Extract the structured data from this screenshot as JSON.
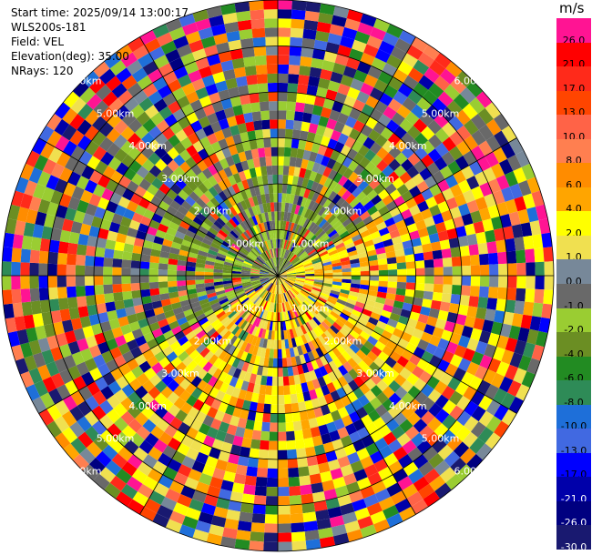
{
  "header": {
    "start_time": "Start time: 2025/09/14 13:00:17",
    "instrument": "WLS200s-181",
    "field": "Field: VEL",
    "elevation": "Elevation(deg): 35.00",
    "nrays": "NRays: 120"
  },
  "colorbar": {
    "unit": "m/s",
    "bins": [
      {
        "label": "26.0",
        "color": "#ff1493",
        "text": "#000000"
      },
      {
        "label": "21.0",
        "color": "#ff0000",
        "text": "#000000"
      },
      {
        "label": "17.0",
        "color": "#ff2a1a",
        "text": "#000000"
      },
      {
        "label": "13.0",
        "color": "#ff4500",
        "text": "#000000"
      },
      {
        "label": "10.0",
        "color": "#ff6347",
        "text": "#000000"
      },
      {
        "label": "8.0",
        "color": "#ff7f50",
        "text": "#000000"
      },
      {
        "label": "6.0",
        "color": "#ff8c00",
        "text": "#000000"
      },
      {
        "label": "4.0",
        "color": "#ffa500",
        "text": "#000000"
      },
      {
        "label": "2.0",
        "color": "#ffff00",
        "text": "#000000"
      },
      {
        "label": "1.0",
        "color": "#f0e050",
        "text": "#000000"
      },
      {
        "label": "0.0",
        "color": "#778899",
        "text": "#000000"
      },
      {
        "label": "-1.0",
        "color": "#696969",
        "text": "#000000"
      },
      {
        "label": "-2.0",
        "color": "#9acd32",
        "text": "#000000"
      },
      {
        "label": "-4.0",
        "color": "#6b8e23",
        "text": "#000000"
      },
      {
        "label": "-6.0",
        "color": "#228b22",
        "text": "#000000"
      },
      {
        "label": "-8.0",
        "color": "#2e8b57",
        "text": "#000000"
      },
      {
        "label": "-10.0",
        "color": "#1e6fd9",
        "text": "#000000"
      },
      {
        "label": "-13.0",
        "color": "#4169e1",
        "text": "#000000"
      },
      {
        "label": "-17.0",
        "color": "#0000ff",
        "text": "#000000"
      },
      {
        "label": "-21.0",
        "color": "#0000aa",
        "text": "#ffffff"
      },
      {
        "label": "-26.0",
        "color": "#000080",
        "text": "#ffffff"
      },
      {
        "label": "-30.0",
        "color": "#191970",
        "text": "#ffffff"
      }
    ]
  },
  "chart_data": {
    "type": "heatmap",
    "projection": "polar PPI",
    "field": "VEL",
    "n_rays": 120,
    "range_rings_km": [
      1.0,
      2.0,
      3.0,
      4.0,
      5.0,
      6.0
    ],
    "ring_labels": [
      "1.00km",
      "2.00km",
      "3.00km",
      "4.00km",
      "5.00km",
      "6.00km"
    ],
    "spokes_deg": [
      0,
      30,
      60,
      90,
      120,
      150,
      180,
      210,
      240,
      270,
      300,
      330
    ],
    "max_range_km": 6.0,
    "range_gates": 30,
    "pattern": {
      "positive_sector_deg": [
        60,
        240
      ],
      "dominant_near_positive": "2.0",
      "dominant_near_negative": "-2.0",
      "outer_range_noise": "mixed all bins"
    }
  }
}
